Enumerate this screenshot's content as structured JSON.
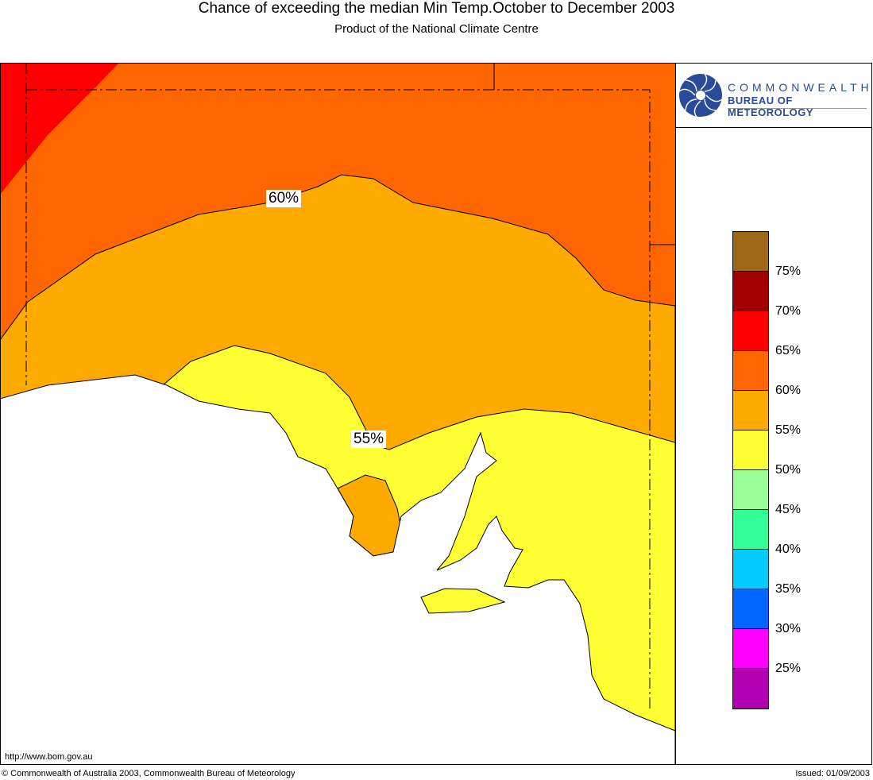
{
  "header": {
    "title": "Chance of exceeding the median Min Temp.October to December 2003",
    "subtitle": "Product of the National Climate Centre"
  },
  "logo": {
    "line1": "COMMONWEALTH",
    "line2": "BUREAU OF METEOROLOGY"
  },
  "map": {
    "labels": [
      "60%",
      "55%"
    ]
  },
  "legend": {
    "bins": [
      {
        "color": "#9c6818"
      },
      {
        "color": "#a00000"
      },
      {
        "color": "#ff0000"
      },
      {
        "color": "#ff6600"
      },
      {
        "color": "#ffaa00"
      },
      {
        "color": "#ffff33"
      },
      {
        "color": "#99ff99"
      },
      {
        "color": "#33ff99"
      },
      {
        "color": "#00ccff"
      },
      {
        "color": "#0066ff"
      },
      {
        "color": "#ff00ff"
      },
      {
        "color": "#b000b0"
      }
    ],
    "labels": [
      "75%",
      "70%",
      "65%",
      "60%",
      "55%",
      "50%",
      "45%",
      "40%",
      "35%",
      "30%",
      "25%"
    ]
  },
  "footer": {
    "url": "http://www.bom.gov.au",
    "copyright": "© Commonwealth of Australia 2003, Commonwealth Bureau of Meteorology",
    "issued": "Issued: 01/09/2003"
  }
}
